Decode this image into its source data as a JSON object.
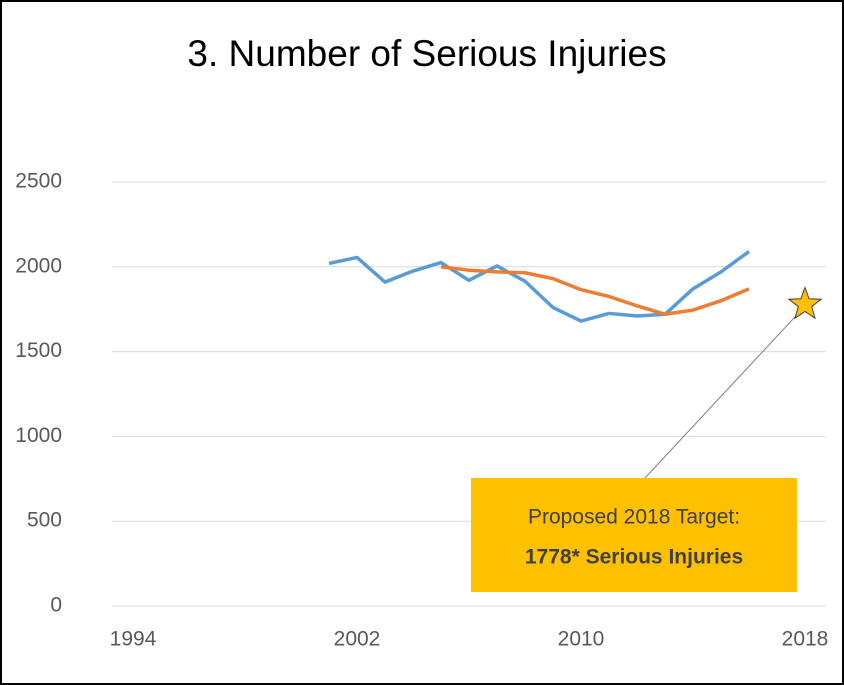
{
  "chart_data": {
    "type": "line",
    "title": "3. Number of Serious Injuries",
    "xlim": [
      1993.25,
      2018.75
    ],
    "xticks": [
      1994,
      2002,
      2010,
      2018
    ],
    "ylim": [
      0,
      2500
    ],
    "yticks": [
      0,
      500,
      1000,
      1500,
      2000,
      2500
    ],
    "grid": true,
    "series": [
      {
        "color": "#5b9bd5",
        "x": [
          2001,
          2002,
          2003,
          2004,
          2005,
          2006,
          2007,
          2008,
          2009,
          2010,
          2011,
          2012,
          2013,
          2014,
          2015,
          2016
        ],
        "values": [
          2020,
          2055,
          1910,
          1975,
          2025,
          1920,
          2005,
          1915,
          1760,
          1680,
          1725,
          1710,
          1720,
          1870,
          1970,
          2090
        ]
      },
      {
        "color": "#ed7d31",
        "x": [
          2005,
          2006,
          2007,
          2008,
          2009,
          2010,
          2011,
          2012,
          2013,
          2014,
          2015,
          2016
        ],
        "values": [
          2000,
          1980,
          1970,
          1965,
          1930,
          1865,
          1825,
          1770,
          1720,
          1745,
          1800,
          1870
        ]
      }
    ],
    "target": {
      "x": 2018,
      "value": 1778,
      "color": "#ffc000"
    },
    "annotation": [
      "Proposed 2018 Target:",
      "1778* Serious Injuries"
    ]
  }
}
